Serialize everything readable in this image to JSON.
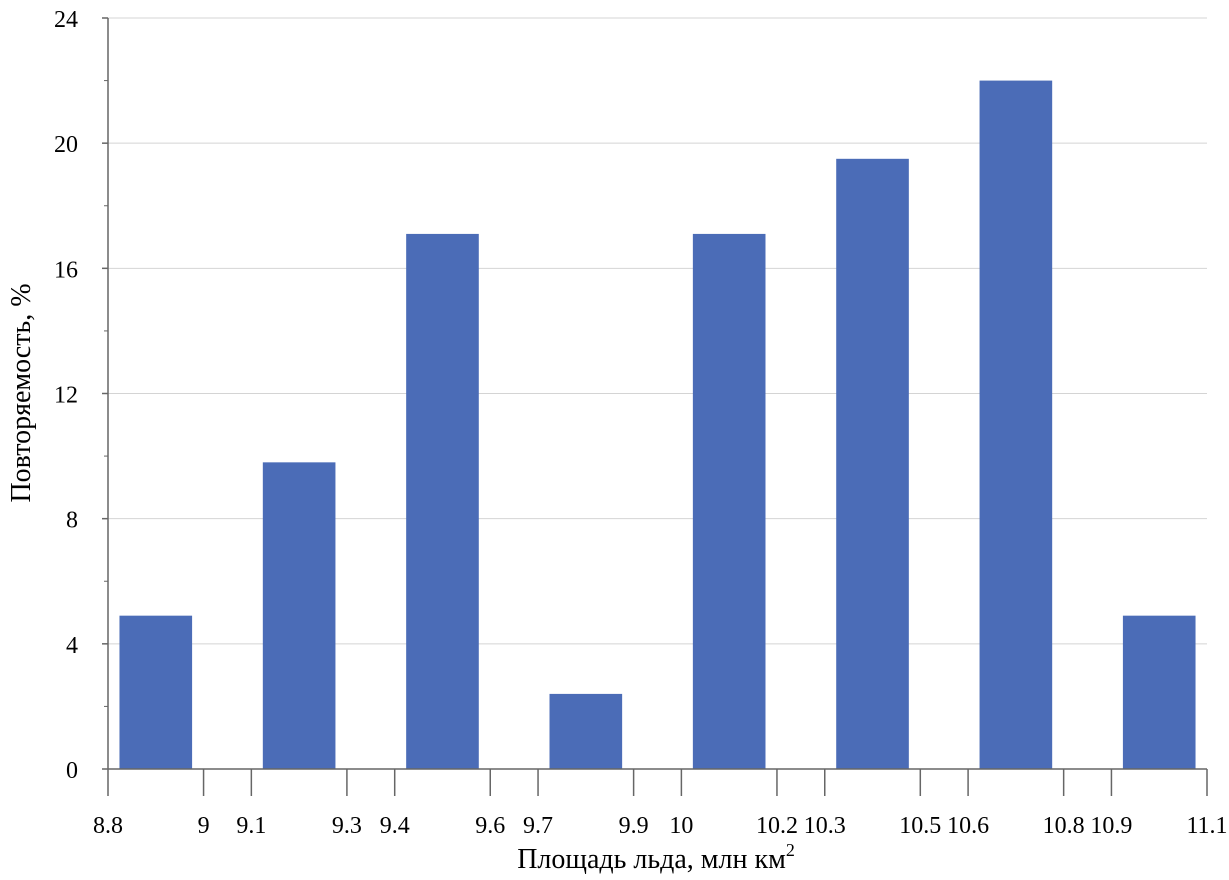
{
  "chart_data": {
    "type": "bar",
    "xlabel": "Площадь льда, млн км",
    "xlabel_superscript": "2",
    "ylabel": "Повторяемость, %",
    "ylim": [
      0,
      24
    ],
    "yticks": [
      "0",
      "4",
      "8",
      "12",
      "16",
      "20",
      "24"
    ],
    "xlim": [
      8.8,
      11.1
    ],
    "xticks": [
      "8.8",
      "9",
      "9.1",
      "9.3",
      "9.4",
      "9.6",
      "9.7",
      "9.9",
      "10",
      "10.2",
      "10.3",
      "10.5",
      "10.6",
      "10.8",
      "10.9",
      "11.1"
    ],
    "grid": "horizontal",
    "bar_color": "#4b6cb7",
    "bars": [
      {
        "from": 8.8,
        "to": 9.0,
        "value": 4.9
      },
      {
        "from": 9.1,
        "to": 9.3,
        "value": 9.8
      },
      {
        "from": 9.4,
        "to": 9.6,
        "value": 17.1
      },
      {
        "from": 9.7,
        "to": 9.9,
        "value": 2.4
      },
      {
        "from": 10.0,
        "to": 10.2,
        "value": 17.1
      },
      {
        "from": 10.3,
        "to": 10.5,
        "value": 19.5
      },
      {
        "from": 10.6,
        "to": 10.8,
        "value": 22.0
      },
      {
        "from": 10.9,
        "to": 11.1,
        "value": 4.9
      }
    ]
  }
}
